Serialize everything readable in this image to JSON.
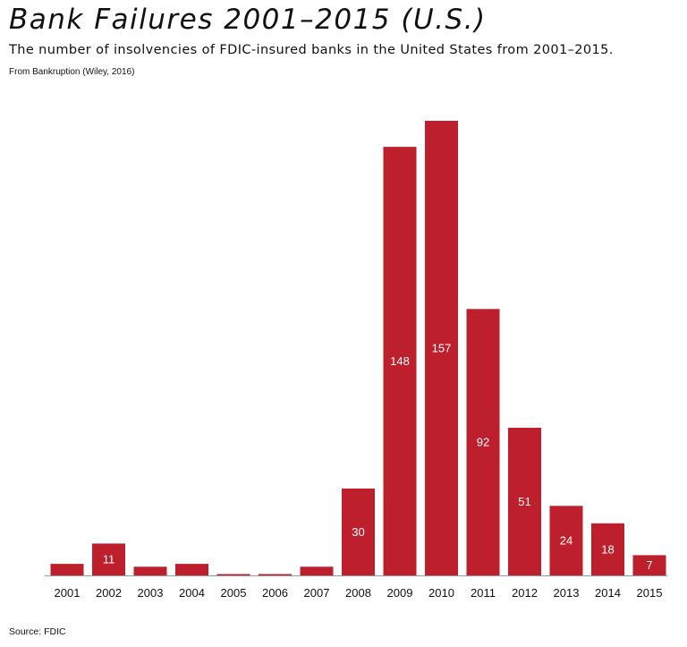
{
  "header": {
    "title": "Bank Failures 2001–2015 (U.S.)",
    "subtitle": "The number of insolvencies of FDIC-insured banks in the United States from 2001–2015.",
    "attribution": "From Bankruption (Wiley, 2016)"
  },
  "footer": {
    "source": "Source: FDIC"
  },
  "colors": {
    "bar": "#bd1f2d",
    "bar_label": "#ffffff",
    "axis": "#999999",
    "tick_text": "#111111"
  },
  "chart_data": {
    "type": "bar",
    "title": "Bank Failures 2001–2015 (U.S.)",
    "xlabel": "",
    "ylabel": "",
    "grid": false,
    "legend": "none",
    "ylim": [
      0,
      160
    ],
    "categories": [
      "2001",
      "2002",
      "2003",
      "2004",
      "2005",
      "2006",
      "2007",
      "2008",
      "2009",
      "2010",
      "2011",
      "2012",
      "2013",
      "2014",
      "2015"
    ],
    "values": [
      4,
      11,
      3,
      4,
      0,
      0,
      3,
      30,
      148,
      157,
      92,
      51,
      24,
      18,
      7
    ],
    "data_labels": [
      "",
      "11",
      "",
      "",
      "",
      "",
      "",
      "30",
      "148",
      "157",
      "92",
      "51",
      "24",
      "18",
      "7"
    ]
  }
}
